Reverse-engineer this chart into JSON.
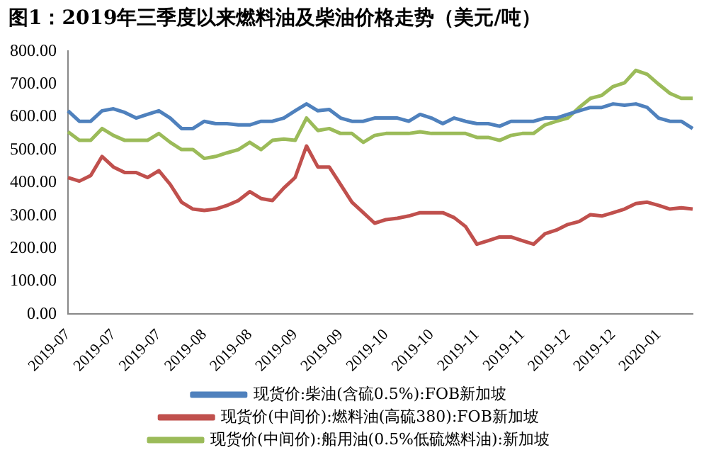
{
  "chart_data": {
    "type": "line",
    "title": "图1：2019年三季度以来燃料油及柴油价格走势（美元/吨）",
    "categories": [
      "2019-07",
      null,
      null,
      null,
      "2019-07",
      null,
      null,
      null,
      "2019-07",
      null,
      null,
      null,
      "2019-08",
      null,
      null,
      null,
      "2019-08",
      null,
      null,
      null,
      "2019-09",
      null,
      null,
      null,
      "2019-09",
      null,
      null,
      null,
      "2019-10",
      null,
      null,
      null,
      "2019-10",
      null,
      null,
      null,
      "2019-11",
      null,
      null,
      null,
      "2019-11",
      null,
      null,
      null,
      "2019-12",
      null,
      null,
      null,
      "2019-12",
      null,
      null,
      null,
      "2020-01",
      null,
      null,
      null
    ],
    "series": [
      {
        "name": "现货价:柴油(含硫0.5%):FOB新加坡",
        "color": "#4f81bd",
        "values": [
          619,
          587,
          587,
          619,
          625,
          614,
          597,
          608,
          619,
          597,
          565,
          565,
          587,
          580,
          580,
          576,
          576,
          587,
          587,
          597,
          619,
          640,
          619,
          623,
          597,
          587,
          587,
          597,
          597,
          597,
          587,
          608,
          597,
          580,
          597,
          587,
          580,
          580,
          572,
          587,
          587,
          587,
          597,
          597,
          608,
          619,
          629,
          629,
          640,
          636,
          640,
          629,
          597,
          587,
          587,
          565
        ]
      },
      {
        "name": "现货价(中间价):燃料油(高硫380):FOB新加坡",
        "color": "#c0504d",
        "values": [
          416,
          405,
          422,
          480,
          448,
          431,
          431,
          416,
          437,
          395,
          341,
          320,
          316,
          320,
          331,
          346,
          373,
          352,
          346,
          384,
          416,
          512,
          448,
          448,
          395,
          341,
          309,
          277,
          288,
          292,
          299,
          309,
          309,
          309,
          294,
          267,
          213,
          224,
          235,
          235,
          224,
          213,
          245,
          256,
          273,
          282,
          303,
          299,
          309,
          320,
          337,
          341,
          331,
          320,
          324,
          320
        ]
      },
      {
        "name": "现货价(中间价):船用油(0.5%低硫燃料油):新加坡",
        "color": "#9bbb59",
        "values": [
          555,
          529,
          529,
          565,
          544,
          529,
          529,
          529,
          550,
          523,
          501,
          501,
          474,
          480,
          491,
          501,
          523,
          501,
          529,
          533,
          529,
          597,
          559,
          565,
          550,
          550,
          523,
          544,
          550,
          550,
          550,
          555,
          550,
          550,
          550,
          550,
          538,
          538,
          529,
          544,
          550,
          550,
          576,
          587,
          597,
          629,
          657,
          666,
          693,
          704,
          742,
          730,
          700,
          672,
          657,
          657
        ]
      }
    ],
    "ylim": [
      0,
      800
    ],
    "yticks": [
      {
        "value": 0,
        "label": "0.00"
      },
      {
        "value": 100,
        "label": "100.00"
      },
      {
        "value": 200,
        "label": "200.00"
      },
      {
        "value": 300,
        "label": "300.00"
      },
      {
        "value": 400,
        "label": "400.00"
      },
      {
        "value": 500,
        "label": "500.00"
      },
      {
        "value": 600,
        "label": "600.00"
      },
      {
        "value": 700,
        "label": "700.00"
      },
      {
        "value": 800,
        "label": "800.00"
      }
    ],
    "grid": false,
    "legend": "bottom",
    "marker": "none",
    "line_style": "solid"
  }
}
